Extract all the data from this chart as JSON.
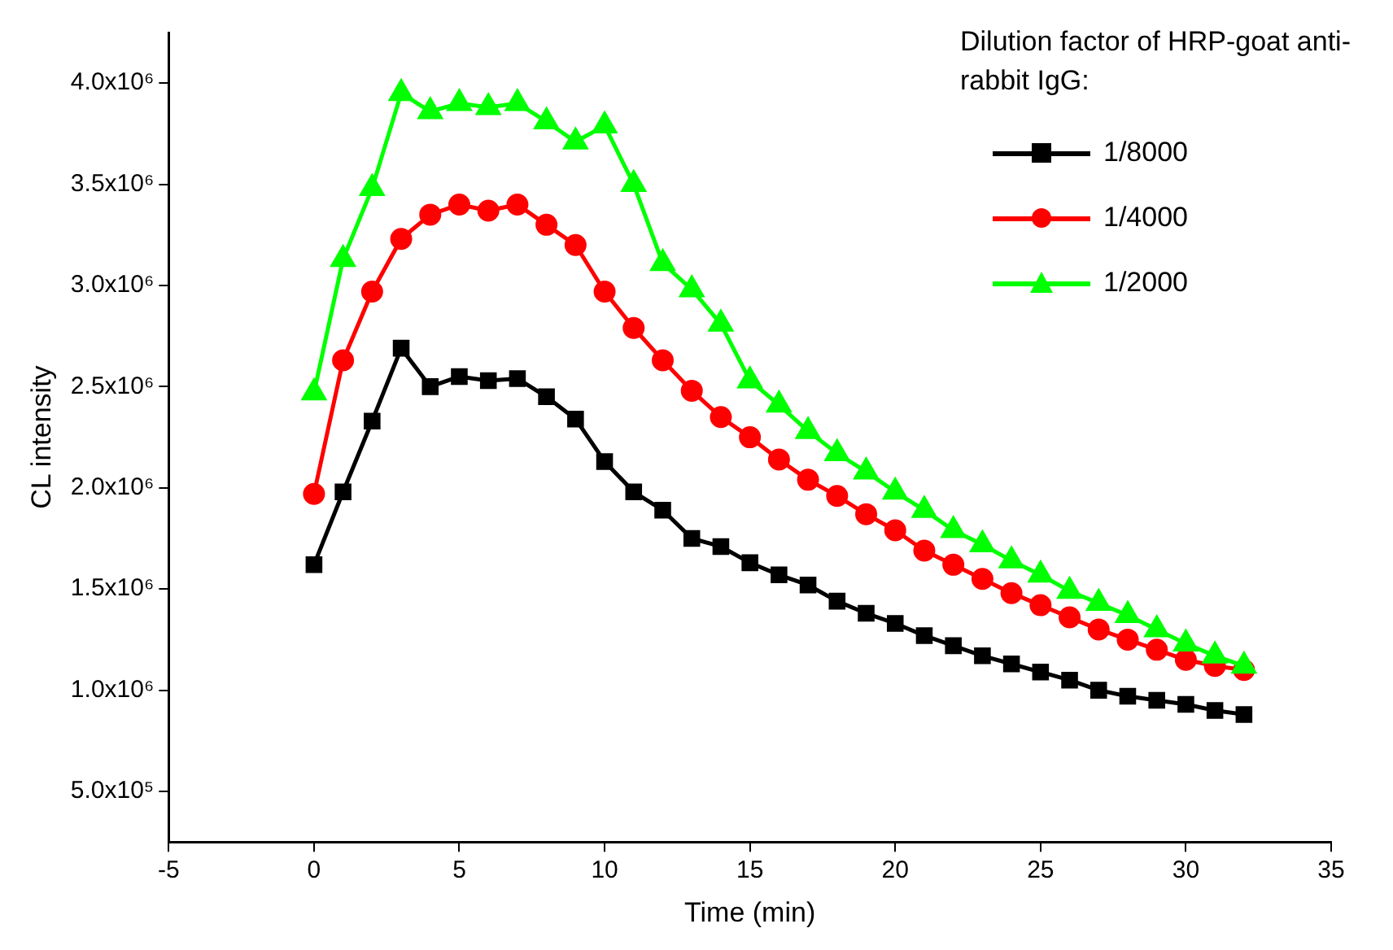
{
  "chart_data": {
    "type": "line",
    "xlabel": "Time (min)",
    "ylabel": "CL intensity",
    "legend_title": "Dilution factor of HRP-goat anti-rabbit IgG:",
    "legend": "top right",
    "grid": false,
    "x": [
      0,
      1,
      2,
      3,
      4,
      5,
      6,
      7,
      8,
      9,
      10,
      11,
      12,
      13,
      14,
      15,
      16,
      17,
      18,
      19,
      20,
      21,
      22,
      23,
      24,
      25,
      26,
      27,
      28,
      29,
      30,
      31,
      32
    ],
    "xlim": [
      -5,
      35
    ],
    "xticks": [
      -5,
      0,
      5,
      10,
      15,
      20,
      25,
      30,
      35
    ],
    "ylim": [
      250000,
      4250000
    ],
    "yticks": [
      {
        "value": 500000,
        "label": "5.0x10⁵"
      },
      {
        "value": 1000000,
        "label": "1.0x10⁶"
      },
      {
        "value": 1500000,
        "label": "1.5x10⁶"
      },
      {
        "value": 2000000,
        "label": "2.0x10⁶"
      },
      {
        "value": 2500000,
        "label": "2.5x10⁶"
      },
      {
        "value": 3000000,
        "label": "3.0x10⁶"
      },
      {
        "value": 3500000,
        "label": "3.5x10⁶"
      },
      {
        "value": 4000000,
        "label": "4.0x10⁶"
      }
    ],
    "series": [
      {
        "name": "1/8000",
        "color": "#000000",
        "marker": "square",
        "values": [
          1620000,
          1980000,
          2330000,
          2690000,
          2500000,
          2550000,
          2530000,
          2540000,
          2450000,
          2340000,
          2130000,
          1980000,
          1890000,
          1750000,
          1710000,
          1630000,
          1570000,
          1520000,
          1440000,
          1380000,
          1330000,
          1270000,
          1220000,
          1170000,
          1130000,
          1090000,
          1050000,
          1000000,
          970000,
          950000,
          930000,
          900000,
          880000
        ]
      },
      {
        "name": "1/4000",
        "color": "#ff0000",
        "marker": "circle",
        "values": [
          1970000,
          2630000,
          2970000,
          3230000,
          3350000,
          3400000,
          3370000,
          3400000,
          3300000,
          3200000,
          2970000,
          2790000,
          2630000,
          2480000,
          2350000,
          2250000,
          2140000,
          2040000,
          1960000,
          1870000,
          1790000,
          1690000,
          1620000,
          1550000,
          1480000,
          1420000,
          1360000,
          1300000,
          1250000,
          1200000,
          1150000,
          1120000,
          1100000
        ]
      },
      {
        "name": "1/2000",
        "color": "#00ff00",
        "marker": "triangle",
        "values": [
          2470000,
          3130000,
          3480000,
          3950000,
          3860000,
          3900000,
          3880000,
          3900000,
          3810000,
          3710000,
          3790000,
          3500000,
          3110000,
          2980000,
          2810000,
          2530000,
          2410000,
          2280000,
          2170000,
          2080000,
          1980000,
          1890000,
          1790000,
          1720000,
          1640000,
          1570000,
          1490000,
          1430000,
          1370000,
          1300000,
          1230000,
          1170000,
          1120000
        ]
      }
    ]
  }
}
